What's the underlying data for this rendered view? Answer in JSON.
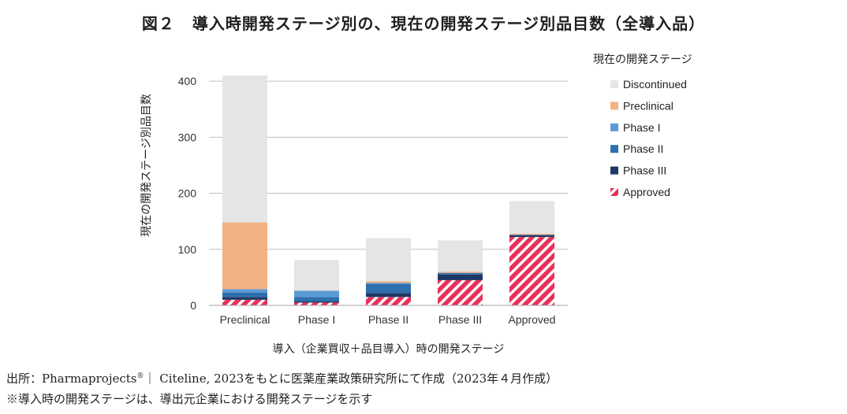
{
  "title": {
    "figure_no": "図２",
    "text": "導入時開発ステージ別の、現在の開発ステージ別品目数（全導入品）"
  },
  "source": {
    "line1_prefix": "出所：Pharmaprojects",
    "line1_reg": "®",
    "line1_suffix": "｜ Citeline, 2023をもとに医薬産業政策研究所にて作成（2023年４月作成）",
    "line2": "※導入時の開発ステージは、導出元企業における開発ステージを示す"
  },
  "chart_data": {
    "type": "bar",
    "stacked": true,
    "categories": [
      "Preclinical",
      "Phase I",
      "Phase II",
      "Phase III",
      "Approved"
    ],
    "series": [
      {
        "name": "Approved",
        "values": [
          10,
          5,
          15,
          45,
          122
        ],
        "color": "#e8305a",
        "pattern": "hatch"
      },
      {
        "name": "Phase III",
        "values": [
          5,
          2,
          7,
          10,
          3
        ],
        "color": "#1f3864"
      },
      {
        "name": "Phase II",
        "values": [
          8,
          8,
          16,
          3,
          1
        ],
        "color": "#2e6fad"
      },
      {
        "name": "Phase I",
        "values": [
          6,
          11,
          2,
          0,
          0
        ],
        "color": "#5b9bd5"
      },
      {
        "name": "Preclinical",
        "values": [
          119,
          0,
          3,
          2,
          2
        ],
        "color": "#f4b183"
      },
      {
        "name": "Discontinued",
        "values": [
          262,
          55,
          77,
          56,
          58
        ],
        "color": "#e5e5e5"
      }
    ],
    "legend_title": "現在の開発ステージ",
    "legend_position": "right",
    "ylabel": "現在の開発ステージ別品目数",
    "xlabel": "導入（企業買収＋品目導入）時の開発ステージ",
    "yticks": [
      0,
      100,
      200,
      300,
      400
    ],
    "ylim": [
      0,
      410
    ],
    "grid": true
  }
}
